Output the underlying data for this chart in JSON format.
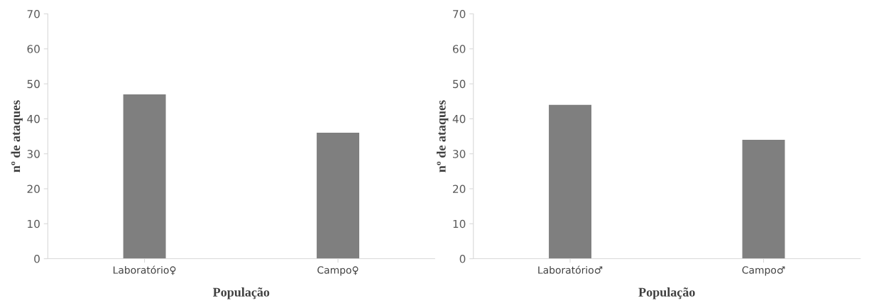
{
  "chart_data": [
    {
      "type": "bar",
      "categories": [
        "Laboratório♀",
        "Campo♀"
      ],
      "values": [
        47,
        36
      ],
      "color": "#7f7f7f",
      "xlabel": "População",
      "ylabel": "nº de ataques",
      "ylim": [
        0,
        70
      ],
      "yticks": [
        0,
        10,
        20,
        30,
        40,
        50,
        60,
        70
      ],
      "grid": false,
      "legend": false
    },
    {
      "type": "bar",
      "categories": [
        "Laboratório♂",
        "Campo♂"
      ],
      "values": [
        44,
        34
      ],
      "color": "#7f7f7f",
      "xlabel": "População",
      "ylabel": "nº de ataques",
      "ylim": [
        0,
        70
      ],
      "yticks": [
        0,
        10,
        20,
        30,
        40,
        50,
        60,
        70
      ],
      "grid": false,
      "legend": false
    }
  ]
}
